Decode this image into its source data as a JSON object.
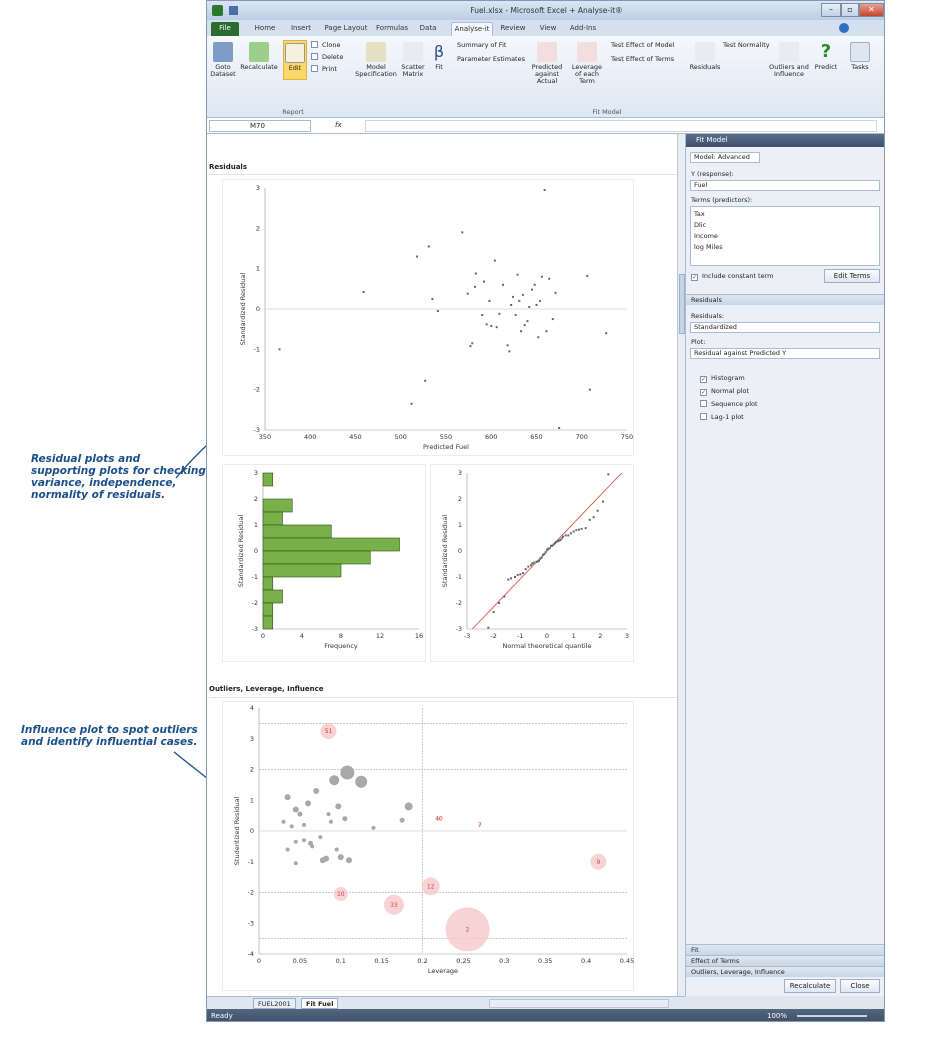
{
  "annotations": {
    "residuals_lines": [
      "Residual plots and",
      "supporting plots for checking",
      "variance, independence,",
      "normality of residuals."
    ],
    "influence_lines": [
      "Influence plot to spot outliers",
      "and identify influential cases."
    ]
  },
  "window": {
    "title": "Fuel.xlsx - Microsoft Excel + Analyse-it®"
  },
  "tabs": [
    "File",
    "Home",
    "Insert",
    "Page Layout",
    "Formulas",
    "Data",
    "Analyse-it",
    "Review",
    "View",
    "Add-Ins"
  ],
  "ribbon": {
    "goto_dataset": "Goto Dataset",
    "recalculate": "Recalculate",
    "edit": "Edit",
    "clone": "Clone",
    "delete": "Delete",
    "print": "Print",
    "model_spec": "Model Specification",
    "scatter_matrix": "Scatter Matrix",
    "fit": "Fit",
    "summary_fit": "Summary of Fit",
    "param_est": "Parameter Estimates",
    "pred_actual": "Predicted against Actual",
    "leverage": "Leverage of each Term",
    "test_model": "Test Effect of Model",
    "test_terms": "Test Effect of Terms",
    "test_normality": "Test Normality",
    "residuals": "Residuals",
    "outliers": "Outliers and Influence",
    "predict": "Predict",
    "tasks": "Tasks",
    "group_report": "Report",
    "group_fit": "Fit Model"
  },
  "formula_bar": {
    "cell": "M70",
    "fx": "fx"
  },
  "sheet": {
    "residuals_title": "Residuals",
    "outliers_title": "Outliers, Leverage, Influence"
  },
  "chart_data": [
    {
      "type": "scatter",
      "xlabel": "Predicted Fuel",
      "ylabel": "Standardized Residual",
      "xlim": [
        350,
        750
      ],
      "ylim": [
        -3,
        3
      ],
      "xticks": [
        "350",
        "400",
        "450",
        "500",
        "550",
        "600",
        "650",
        "700",
        "750"
      ],
      "yticks": [
        "3",
        "2",
        "1",
        "0",
        "-1",
        "-2",
        "-3"
      ],
      "points": [
        [
          366,
          -1.0
        ],
        [
          459,
          0.42
        ],
        [
          512,
          -2.35
        ],
        [
          518,
          1.3
        ],
        [
          527,
          -1.78
        ],
        [
          531,
          1.55
        ],
        [
          535,
          0.25
        ],
        [
          541,
          -0.05
        ],
        [
          568,
          1.9
        ],
        [
          574,
          0.38
        ],
        [
          577,
          -0.92
        ],
        [
          579,
          -0.85
        ],
        [
          582,
          0.55
        ],
        [
          583,
          0.88
        ],
        [
          590,
          -0.15
        ],
        [
          592,
          0.68
        ],
        [
          595,
          -0.38
        ],
        [
          598,
          0.2
        ],
        [
          600,
          -0.42
        ],
        [
          604,
          1.2
        ],
        [
          606,
          -0.45
        ],
        [
          609,
          -0.12
        ],
        [
          613,
          0.6
        ],
        [
          618,
          -0.9
        ],
        [
          620,
          -1.05
        ],
        [
          622,
          0.1
        ],
        [
          624,
          0.3
        ],
        [
          627,
          -0.15
        ],
        [
          629,
          0.85
        ],
        [
          631,
          0.2
        ],
        [
          633,
          -0.55
        ],
        [
          635,
          0.35
        ],
        [
          637,
          -0.4
        ],
        [
          640,
          -0.3
        ],
        [
          642,
          0.05
        ],
        [
          645,
          0.48
        ],
        [
          648,
          0.6
        ],
        [
          650,
          0.1
        ],
        [
          652,
          -0.7
        ],
        [
          654,
          0.2
        ],
        [
          656,
          0.8
        ],
        [
          659,
          2.95
        ],
        [
          661,
          -0.55
        ],
        [
          664,
          0.75
        ],
        [
          668,
          -0.25
        ],
        [
          671,
          0.4
        ],
        [
          675,
          -2.95
        ],
        [
          706,
          0.82
        ],
        [
          709,
          -2.0
        ],
        [
          727,
          -0.6
        ]
      ]
    },
    {
      "type": "bar",
      "orientation": "horizontal",
      "xlabel": "Frequency",
      "ylabel": "Standardized Residual",
      "xlim": [
        0,
        16
      ],
      "ylim": [
        -3,
        3
      ],
      "xticks": [
        "0",
        "4",
        "8",
        "12",
        "16"
      ],
      "yticks": [
        "3",
        "2",
        "1",
        "0",
        "-1",
        "-2",
        "-3"
      ],
      "bins": [
        [
          2.5,
          3.0,
          1
        ],
        [
          2.0,
          2.5,
          0
        ],
        [
          1.5,
          2.0,
          3
        ],
        [
          1.0,
          1.5,
          2
        ],
        [
          0.5,
          1.0,
          7
        ],
        [
          0.0,
          0.5,
          14
        ],
        [
          -0.5,
          0.0,
          11
        ],
        [
          -1.0,
          -0.5,
          8
        ],
        [
          -1.5,
          -1.0,
          1
        ],
        [
          -2.0,
          -1.5,
          2
        ],
        [
          -2.5,
          -2.0,
          1
        ],
        [
          -3.0,
          -2.5,
          1
        ]
      ]
    },
    {
      "type": "scatter",
      "xlabel": "Normal theoretical quantile",
      "ylabel": "Standardized Residual",
      "xlim": [
        -3,
        3
      ],
      "ylim": [
        -3,
        3
      ],
      "xticks": [
        "-3",
        "-2",
        "-1",
        "0",
        "1",
        "2",
        "3"
      ],
      "yticks": [
        "3",
        "2",
        "1",
        "0",
        "-1",
        "-2",
        "-3"
      ],
      "reference_line": [
        [
          -2.8,
          -3.0
        ],
        [
          2.8,
          3.0
        ]
      ],
      "points": [
        [
          -2.2,
          -2.95
        ],
        [
          -2.0,
          -2.35
        ],
        [
          -1.8,
          -2.0
        ],
        [
          -1.6,
          -1.75
        ],
        [
          -1.45,
          -1.1
        ],
        [
          -1.35,
          -1.05
        ],
        [
          -1.2,
          -1.0
        ],
        [
          -1.1,
          -0.92
        ],
        [
          -1.0,
          -0.9
        ],
        [
          -0.9,
          -0.85
        ],
        [
          -0.8,
          -0.7
        ],
        [
          -0.7,
          -0.6
        ],
        [
          -0.6,
          -0.55
        ],
        [
          -0.55,
          -0.48
        ],
        [
          -0.5,
          -0.45
        ],
        [
          -0.4,
          -0.42
        ],
        [
          -0.35,
          -0.4
        ],
        [
          -0.3,
          -0.38
        ],
        [
          -0.25,
          -0.3
        ],
        [
          -0.2,
          -0.25
        ],
        [
          -0.15,
          -0.15
        ],
        [
          -0.1,
          -0.12
        ],
        [
          -0.05,
          -0.05
        ],
        [
          0.0,
          0.05
        ],
        [
          0.05,
          0.1
        ],
        [
          0.1,
          0.1
        ],
        [
          0.15,
          0.2
        ],
        [
          0.2,
          0.2
        ],
        [
          0.25,
          0.25
        ],
        [
          0.3,
          0.3
        ],
        [
          0.35,
          0.35
        ],
        [
          0.4,
          0.38
        ],
        [
          0.45,
          0.4
        ],
        [
          0.5,
          0.42
        ],
        [
          0.55,
          0.48
        ],
        [
          0.6,
          0.55
        ],
        [
          0.7,
          0.6
        ],
        [
          0.8,
          0.6
        ],
        [
          0.9,
          0.68
        ],
        [
          1.0,
          0.75
        ],
        [
          1.1,
          0.8
        ],
        [
          1.2,
          0.82
        ],
        [
          1.3,
          0.85
        ],
        [
          1.45,
          0.88
        ],
        [
          1.6,
          1.2
        ],
        [
          1.75,
          1.3
        ],
        [
          1.9,
          1.55
        ],
        [
          2.1,
          1.9
        ],
        [
          2.3,
          2.95
        ]
      ]
    },
    {
      "type": "bubble",
      "xlabel": "Leverage",
      "ylabel": "Studentized Residual",
      "xlim": [
        0,
        0.45
      ],
      "ylim": [
        -4,
        4
      ],
      "xticks": [
        "0",
        "0.05",
        "0.1",
        "0.15",
        "0.2",
        "0.25",
        "0.3",
        "0.35",
        "0.4",
        "0.45"
      ],
      "yticks": [
        "4",
        "3",
        "2",
        "1",
        "0",
        "-1",
        "-2",
        "-3",
        "-4"
      ],
      "hlines": [
        3.5,
        2,
        -2,
        -3.5
      ],
      "vline": 0.2,
      "points": [
        [
          0.035,
          1.1
        ],
        [
          0.045,
          0.7
        ],
        [
          0.05,
          0.55
        ],
        [
          0.045,
          -0.35
        ],
        [
          0.055,
          -0.3
        ],
        [
          0.06,
          0.9
        ],
        [
          0.063,
          -0.4
        ],
        [
          0.065,
          -0.5
        ],
        [
          0.07,
          1.3
        ],
        [
          0.075,
          -0.2
        ],
        [
          0.078,
          -0.95
        ],
        [
          0.082,
          -0.9
        ],
        [
          0.085,
          0.55
        ],
        [
          0.088,
          0.3
        ],
        [
          0.092,
          1.65
        ],
        [
          0.095,
          -0.6
        ],
        [
          0.097,
          0.8
        ],
        [
          0.1,
          -0.85
        ],
        [
          0.105,
          0.4
        ],
        [
          0.108,
          1.9
        ],
        [
          0.11,
          -0.95
        ],
        [
          0.125,
          1.6
        ],
        [
          0.14,
          0.1
        ],
        [
          0.175,
          0.35
        ],
        [
          0.183,
          0.8
        ],
        [
          0.045,
          -1.05
        ],
        [
          0.035,
          -0.6
        ],
        [
          0.03,
          0.3
        ],
        [
          0.04,
          0.15
        ],
        [
          0.055,
          0.2
        ]
      ],
      "labeled": [
        [
          "51",
          0.085,
          3.25
        ],
        [
          "10",
          0.1,
          -2.05
        ],
        [
          "33",
          0.165,
          -2.4
        ],
        [
          "12",
          0.21,
          -1.8
        ],
        [
          "40",
          0.22,
          0.4
        ],
        [
          "7",
          0.27,
          0.2
        ],
        [
          "2",
          0.255,
          -3.2
        ],
        [
          "9",
          0.415,
          -1.0
        ]
      ]
    }
  ],
  "pane": {
    "title": "Fit Model",
    "model": "Model: Advanced",
    "y_label": "Y (response):",
    "y_value": "Fuel",
    "terms_label": "Terms (predictors):",
    "terms": [
      "Tax",
      "Dlic",
      "Income",
      "log Miles"
    ],
    "include_constant": "Include constant term",
    "edit_terms": "Edit Terms",
    "sec_residuals": "Residuals",
    "residuals_label": "Residuals:",
    "residuals_value": "Standardized",
    "plot_label": "Plot:",
    "plot_value": "Residual against Predicted Y",
    "checks": [
      [
        "Histogram",
        true
      ],
      [
        "Normal plot",
        true
      ],
      [
        "Sequence plot",
        false
      ],
      [
        "Lag-1 plot",
        false
      ]
    ],
    "sec_fit": "Fit",
    "sec_effect": "Effect of Terms",
    "sec_outliers": "Outliers, Leverage, Influence",
    "recalc": "Recalculate",
    "close": "Close"
  },
  "sheet_tabs": [
    "FUEL2001",
    "Fit Fuel"
  ],
  "status": {
    "left": "Ready",
    "zoom": "100%"
  }
}
